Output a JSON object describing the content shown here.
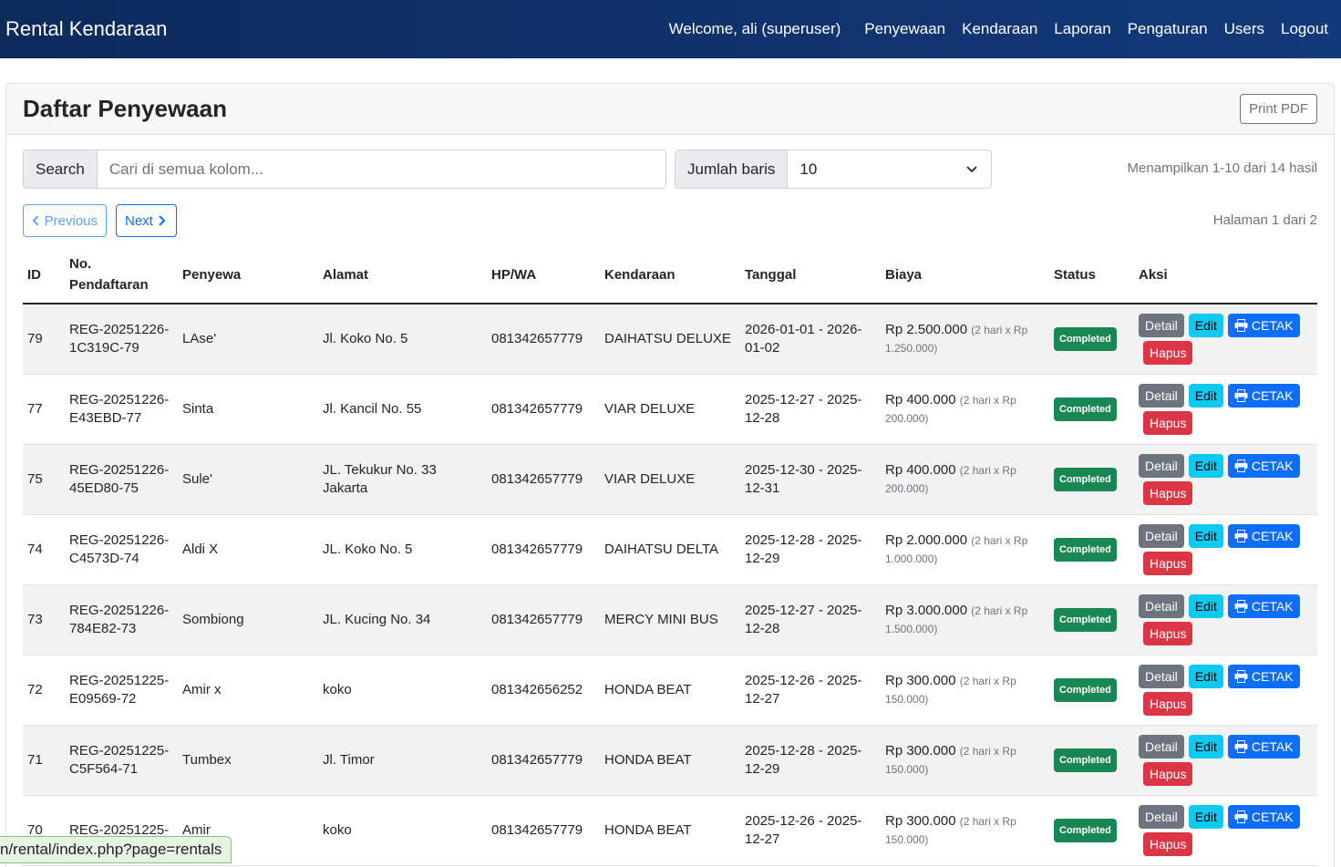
{
  "nav": {
    "brand": "Rental Kendaraan",
    "welcome": "Welcome, ali (superuser)",
    "links": [
      "Penyewaan",
      "Kendaraan",
      "Laporan",
      "Pengaturan",
      "Users",
      "Logout"
    ]
  },
  "card": {
    "title": "Daftar Penyewaan",
    "print_label": "Print PDF"
  },
  "search": {
    "label": "Search",
    "placeholder": "Cari di semua kolom..."
  },
  "rows_select": {
    "label": "Jumlah baris",
    "value": "10"
  },
  "showing_text": "Menampilkan 1-10 dari 14 hasil",
  "pager": {
    "prev_label": "Previous",
    "next_label": "Next",
    "page_info": "Halaman 1 dari 2"
  },
  "table": {
    "headers": [
      "ID",
      "No. Pendaftaran",
      "Penyewa",
      "Alamat",
      "HP/WA",
      "Kendaraan",
      "Tanggal",
      "Biaya",
      "Status",
      "Aksi"
    ],
    "actions": {
      "detail": "Detail",
      "edit": "Edit",
      "cetak": "CETAK",
      "hapus": "Hapus"
    },
    "rows": [
      {
        "id": "79",
        "reg": "REG-20251226-1C319C-79",
        "penyewa": "LAse'",
        "alamat": "Jl. Koko No. 5",
        "hp": "081342657779",
        "kendaraan": "DAIHATSU DELUXE",
        "tanggal": "2026-01-01 - 2026-01-02",
        "biaya": "Rp 2.500.000",
        "biaya_detail": "(2 hari x Rp 1.250.000)",
        "status": "Completed"
      },
      {
        "id": "77",
        "reg": "REG-20251226-E43EBD-77",
        "penyewa": "Sinta",
        "alamat": "Jl. Kancil No. 55",
        "hp": "081342657779",
        "kendaraan": "VIAR DELUXE",
        "tanggal": "2025-12-27 - 2025-12-28",
        "biaya": "Rp 400.000",
        "biaya_detail": "(2 hari x Rp 200.000)",
        "status": "Completed"
      },
      {
        "id": "75",
        "reg": "REG-20251226-45ED80-75",
        "penyewa": "Sule'",
        "alamat": "JL. Tekukur No. 33 Jakarta",
        "hp": "081342657779",
        "kendaraan": "VIAR DELUXE",
        "tanggal": "2025-12-30 - 2025-12-31",
        "biaya": "Rp 400.000",
        "biaya_detail": "(2 hari x Rp 200.000)",
        "status": "Completed"
      },
      {
        "id": "74",
        "reg": "REG-20251226-C4573D-74",
        "penyewa": "Aldi X",
        "alamat": "JL. Koko No. 5",
        "hp": "081342657779",
        "kendaraan": "DAIHATSU DELTA",
        "tanggal": "2025-12-28 - 2025-12-29",
        "biaya": "Rp 2.000.000",
        "biaya_detail": "(2 hari x Rp 1.000.000)",
        "status": "Completed"
      },
      {
        "id": "73",
        "reg": "REG-20251226-784E82-73",
        "penyewa": "Sombiong",
        "alamat": "JL. Kucing No. 34",
        "hp": "081342657779",
        "kendaraan": "MERCY MINI BUS",
        "tanggal": "2025-12-27 - 2025-12-28",
        "biaya": "Rp 3.000.000",
        "biaya_detail": "(2 hari x Rp 1.500.000)",
        "status": "Completed"
      },
      {
        "id": "72",
        "reg": "REG-20251225-E09569-72",
        "penyewa": "Amir x",
        "alamat": "koko",
        "hp": "081342656252",
        "kendaraan": "HONDA BEAT",
        "tanggal": "2025-12-26 - 2025-12-27",
        "biaya": "Rp 300.000",
        "biaya_detail": "(2 hari x Rp 150.000)",
        "status": "Completed"
      },
      {
        "id": "71",
        "reg": "REG-20251225-C5F564-71",
        "penyewa": "Tumbex",
        "alamat": "Jl. Timor",
        "hp": "081342657779",
        "kendaraan": "HONDA BEAT",
        "tanggal": "2025-12-28 - 2025-12-29",
        "biaya": "Rp 300.000",
        "biaya_detail": "(2 hari x Rp 150.000)",
        "status": "Completed"
      },
      {
        "id": "70",
        "reg": "REG-20251225-",
        "penyewa": "Amir",
        "alamat": "koko",
        "hp": "081342657779",
        "kendaraan": "HONDA BEAT",
        "tanggal": "2025-12-26 - 2025-12-27",
        "biaya": "Rp 300.000",
        "biaya_detail": "(2 hari x Rp 150.000)",
        "status": "Completed"
      }
    ]
  },
  "statusbar": "n/rental/index.php?page=rentals",
  "colors": {
    "navbar": "#12397a",
    "completed": "#198754",
    "detail": "#6c757d",
    "edit": "#0dcaf0",
    "cetak": "#0d6efd",
    "hapus": "#dc3545"
  }
}
